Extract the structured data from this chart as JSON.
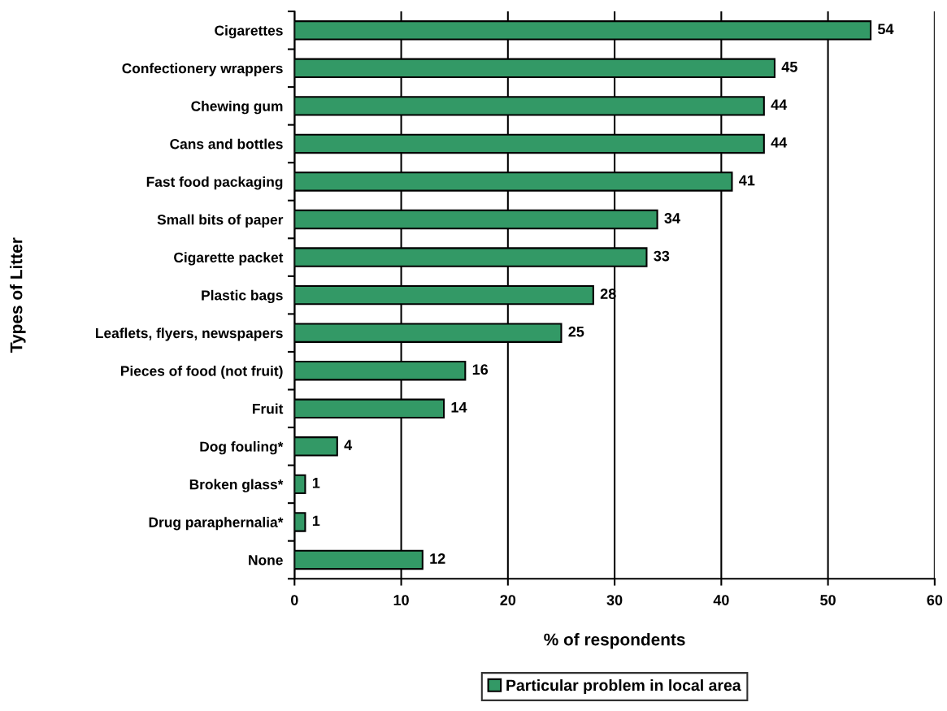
{
  "chart_data": {
    "type": "bar",
    "orientation": "horizontal",
    "categories": [
      "Cigarettes",
      "Confectionery wrappers",
      "Chewing gum",
      "Cans and bottles",
      "Fast food packaging",
      "Small bits of paper",
      "Cigarette packet",
      "Plastic bags",
      "Leaflets, flyers, newspapers",
      "Pieces of food (not fruit)",
      "Fruit",
      "Dog fouling*",
      "Broken glass*",
      "Drug paraphernalia*",
      "None"
    ],
    "series": [
      {
        "name": "Particular problem in local area",
        "color": "#339966",
        "values": [
          54,
          45,
          44,
          44,
          41,
          34,
          33,
          28,
          25,
          16,
          14,
          4,
          1,
          1,
          12
        ]
      }
    ],
    "xlabel": "% of respondents",
    "ylabel": "Types of Litter",
    "xlim": [
      0,
      60
    ],
    "xticks": [
      0,
      10,
      20,
      30,
      40,
      50,
      60
    ],
    "grid": "x",
    "legend": "bottom",
    "data_labels": true
  }
}
